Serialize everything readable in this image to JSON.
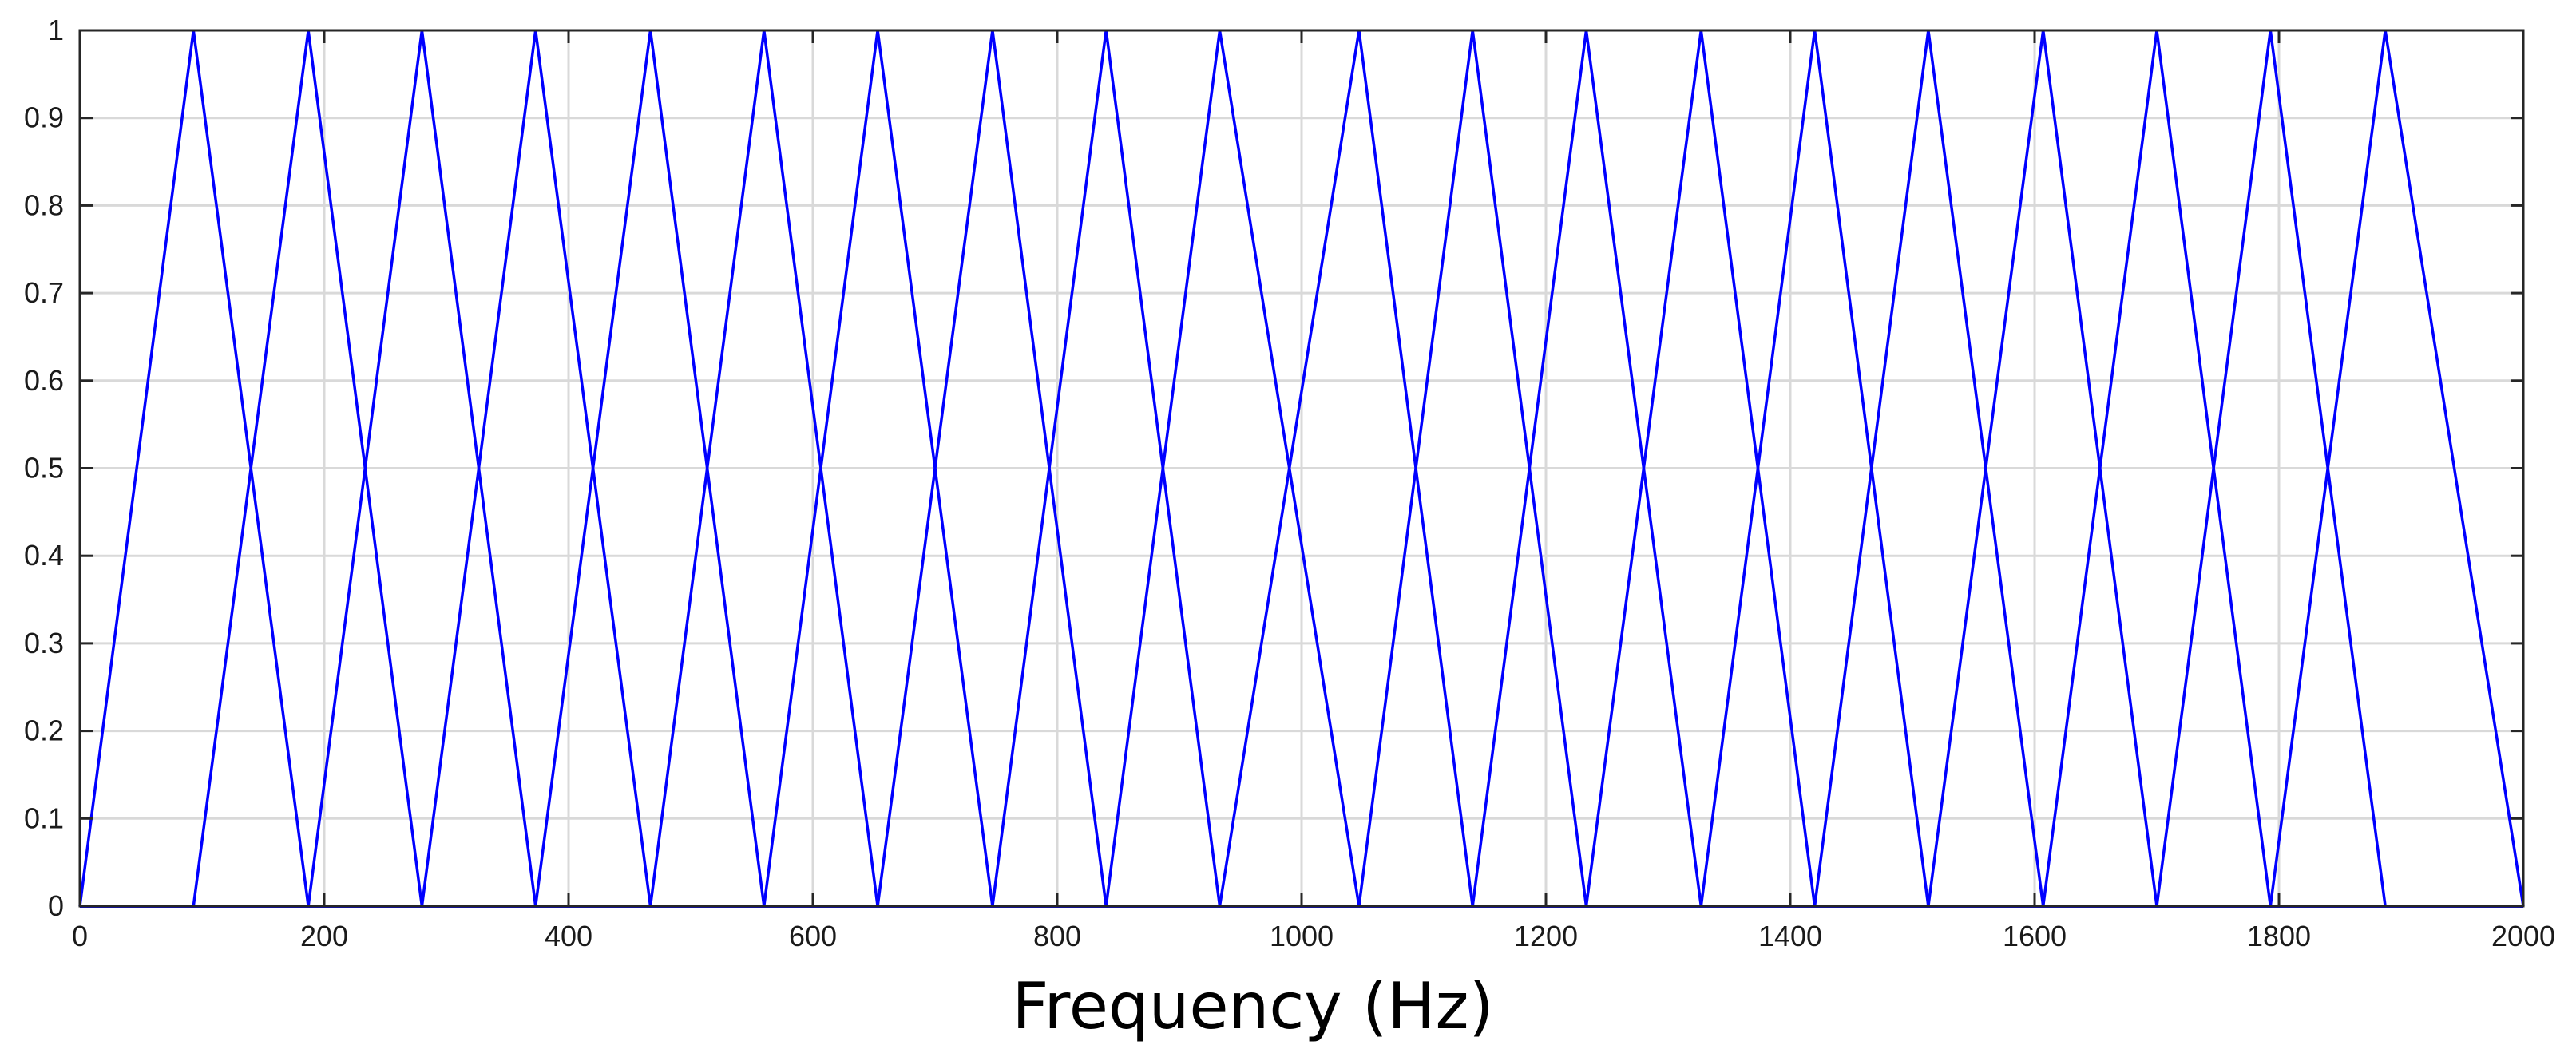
{
  "chart_data": {
    "type": "line",
    "title": "",
    "xlabel": "Frequency (Hz)",
    "ylabel": "",
    "xlim": [
      0,
      2000
    ],
    "ylim": [
      0,
      1
    ],
    "grid": true,
    "x_ticks": [
      0,
      200,
      400,
      600,
      800,
      1000,
      1200,
      1400,
      1600,
      1800,
      2000
    ],
    "x_tick_labels": [
      "0",
      "200",
      "400",
      "600",
      "800",
      "1000",
      "1200",
      "1400",
      "1600",
      "1800",
      "2000"
    ],
    "y_ticks": [
      0,
      0.1,
      0.2,
      0.3,
      0.4,
      0.5,
      0.6,
      0.7,
      0.8,
      0.9,
      1
    ],
    "y_tick_labels": [
      "0",
      "0.1",
      "0.2",
      "0.3",
      "0.4",
      "0.5",
      "0.6",
      "0.7",
      "0.8",
      "0.9",
      "1"
    ],
    "filter_peaks_hz": [
      93,
      187,
      280,
      373,
      467,
      560,
      653,
      747,
      840,
      933,
      1047,
      1140,
      1233,
      1327,
      1420,
      1513,
      1607,
      1700,
      1793,
      1887
    ],
    "filter_edges_hz": [
      0,
      93,
      187,
      280,
      373,
      467,
      560,
      653,
      747,
      840,
      933,
      1047,
      1140,
      1233,
      1327,
      1420,
      1513,
      1607,
      1700,
      1793,
      1887,
      2000
    ],
    "line_color": "#0000ff",
    "grid_color": "#d9d9d9",
    "axis_color": "#262626"
  }
}
